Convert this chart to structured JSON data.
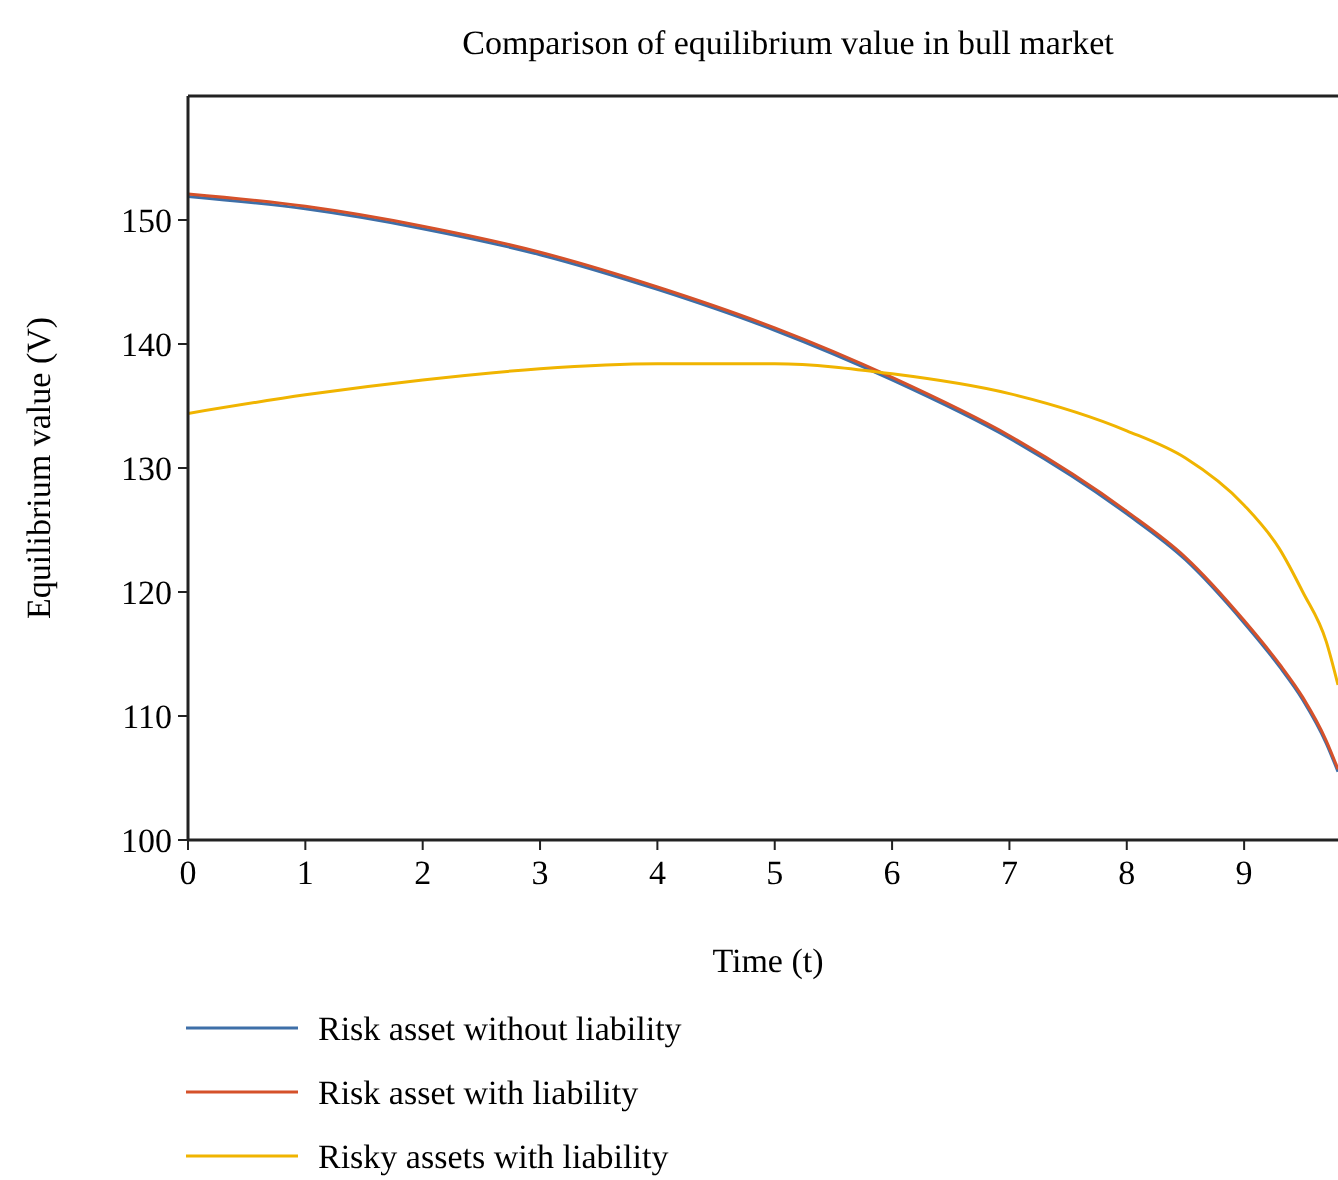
{
  "chart_data": {
    "type": "line",
    "title": "Comparison of equilibrium value in bull market",
    "xlabel": "Time (t)",
    "ylabel": "Equilibrium value (V)",
    "x": [
      0,
      1,
      2,
      3,
      4,
      5,
      6,
      7,
      8,
      8.5,
      9,
      9.3,
      9.5,
      9.7,
      9.8
    ],
    "series": [
      {
        "name": "Risk asset without liability",
        "color": "#3e6fa8",
        "values": [
          151.9,
          150.9,
          149.3,
          147.2,
          144.4,
          141.1,
          137.1,
          132.4,
          126.3,
          122.6,
          117.5,
          114.0,
          111.3,
          107.8,
          105.5
        ]
      },
      {
        "name": "Risk asset with liability",
        "color": "#d5512a",
        "values": [
          152.1,
          151.1,
          149.5,
          147.4,
          144.6,
          141.3,
          137.3,
          132.6,
          126.5,
          122.8,
          117.7,
          114.2,
          111.5,
          108.0,
          105.7
        ]
      },
      {
        "name": "Risky assets with liability",
        "color": "#f0b400",
        "values": [
          134.4,
          135.9,
          137.1,
          138.0,
          138.4,
          138.4,
          137.6,
          136.0,
          133.0,
          130.8,
          127.0,
          123.5,
          120.0,
          116.0,
          112.5
        ]
      }
    ],
    "xlim": [
      0,
      9.8
    ],
    "ylim": [
      100,
      160
    ],
    "xticks": [
      0,
      1,
      2,
      3,
      4,
      5,
      6,
      7,
      8,
      9
    ],
    "yticks": [
      100,
      110,
      120,
      130,
      140,
      150
    ],
    "grid": false,
    "legend": "bottom",
    "marker": "none",
    "line_style": "solid"
  }
}
